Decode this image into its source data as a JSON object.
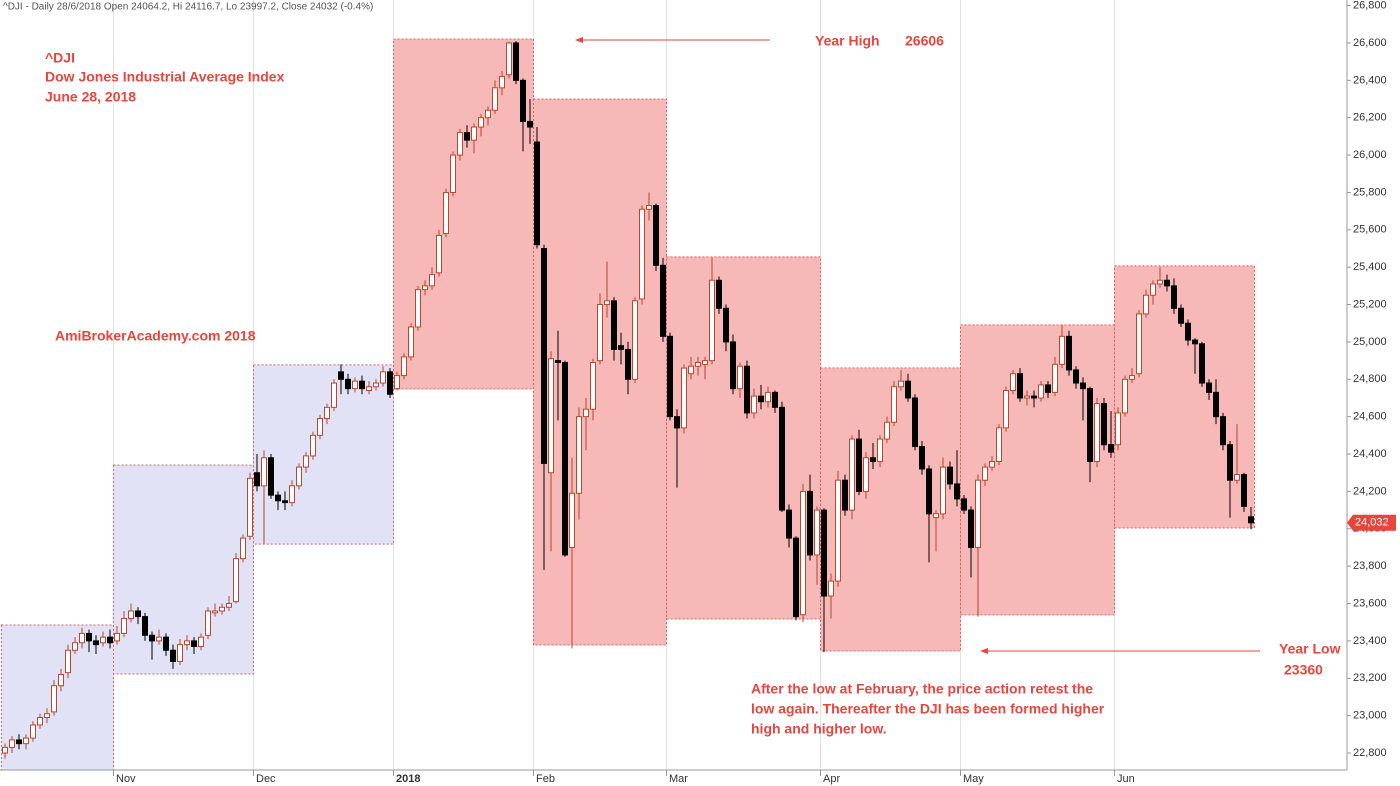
{
  "chart_data": {
    "type": "candlestick",
    "header": "^DJI - Daily 28/6/2018 Open 24064.2, Hi 24116.7, Lo 23997.2, Close 24032 (-0.4%)",
    "annotations": {
      "ticker": "^DJI",
      "name": "Dow Jones Industrial Average Index",
      "date": "June 28, 2018",
      "site": "AmiBrokerAcademy.com 2018",
      "year_high_label": "Year High",
      "year_high": 26606,
      "year_low_label": "Year Low",
      "year_low": 23360,
      "note": [
        "After the low at February, the price action retest the",
        "low again. Thereafter the DJI has been formed higher",
        "high and higher low."
      ]
    },
    "last_label": "24,032",
    "up_color": "#ffffff",
    "down_color": "#000000",
    "wick_color": "#b5482e",
    "label_color": "#e8463c",
    "ylim": [
      22709,
      26830
    ],
    "yticks": [
      {
        "value": 22800,
        "label": "22,800"
      },
      {
        "value": 23000,
        "label": "23,000"
      },
      {
        "value": 23200,
        "label": "23,200"
      },
      {
        "value": 23400,
        "label": "23,400"
      },
      {
        "value": 23600,
        "label": "23,600"
      },
      {
        "value": 23800,
        "label": "23,800"
      },
      {
        "value": 24000,
        "label": "24,000"
      },
      {
        "value": 24200,
        "label": "24,200"
      },
      {
        "value": 24400,
        "label": "24,400"
      },
      {
        "value": 24600,
        "label": "24,600"
      },
      {
        "value": 24800,
        "label": "24,800"
      },
      {
        "value": 25000,
        "label": "25,000"
      },
      {
        "value": 25200,
        "label": "25,200"
      },
      {
        "value": 25400,
        "label": "25,400"
      },
      {
        "value": 25600,
        "label": "25,600"
      },
      {
        "value": 25800,
        "label": "25,800"
      },
      {
        "value": 26000,
        "label": "26,000"
      },
      {
        "value": 26200,
        "label": "26,200"
      },
      {
        "value": 26400,
        "label": "26,400"
      },
      {
        "value": 26600,
        "label": "26,600"
      },
      {
        "value": 26800,
        "label": "26,800"
      }
    ],
    "categories": [
      null,
      null,
      null,
      null,
      null,
      null,
      null,
      null,
      null,
      null,
      null,
      null,
      null,
      null,
      null,
      null,
      "Nov",
      null,
      null,
      null,
      null,
      null,
      null,
      null,
      null,
      null,
      null,
      null,
      null,
      null,
      null,
      null,
      null,
      null,
      null,
      null,
      "Dec",
      null,
      null,
      null,
      null,
      null,
      null,
      null,
      null,
      null,
      null,
      null,
      null,
      null,
      null,
      null,
      null,
      null,
      null,
      null,
      "2018",
      null,
      null,
      null,
      null,
      null,
      null,
      null,
      null,
      null,
      null,
      null,
      null,
      null,
      null,
      null,
      null,
      null,
      null,
      null,
      "Feb",
      null,
      null,
      null,
      null,
      null,
      null,
      null,
      null,
      null,
      null,
      null,
      null,
      null,
      null,
      null,
      null,
      null,
      null,
      "Mar",
      null,
      null,
      null,
      null,
      null,
      null,
      null,
      null,
      null,
      null,
      null,
      null,
      null,
      null,
      null,
      null,
      null,
      null,
      null,
      null,
      null,
      "Apr",
      null,
      null,
      null,
      null,
      null,
      null,
      null,
      null,
      null,
      null,
      null,
      null,
      null,
      null,
      null,
      null,
      null,
      null,
      null,
      "May",
      null,
      null,
      null,
      null,
      null,
      null,
      null,
      null,
      null,
      null,
      null,
      null,
      null,
      null,
      null,
      null,
      null,
      null,
      null,
      null,
      null,
      "Jun",
      null,
      null,
      null,
      null,
      null,
      null,
      null,
      null,
      null,
      null,
      null,
      null,
      null,
      null,
      null,
      null,
      null,
      null,
      null
    ],
    "ranges": [
      {
        "high": 23485,
        "low": 22600,
        "color": "#e2e2f6"
      },
      {
        "high": 24341,
        "low": 23223,
        "color": "#e2e2f6"
      },
      {
        "high": 24877,
        "low": 23918,
        "color": "#e2e2f6"
      },
      {
        "high": 26621,
        "low": 24748,
        "color": "#f7b8b8"
      },
      {
        "high": 26300,
        "low": 23378,
        "color": "#f7b8b8"
      },
      {
        "high": 25455,
        "low": 23517,
        "color": "#f7b8b8"
      },
      {
        "high": 24861,
        "low": 23346,
        "color": "#f7b8b8"
      },
      {
        "high": 25091,
        "low": 23539,
        "color": "#f7b8b8"
      },
      {
        "high": 25407,
        "low": 24004,
        "color": "#f7b8b8"
      }
    ],
    "ohlc": [
      [
        22800,
        22850,
        22770,
        22830
      ],
      [
        22830,
        22890,
        22800,
        22870
      ],
      [
        22870,
        22900,
        22820,
        22850
      ],
      [
        22850,
        22900,
        22820,
        22880
      ],
      [
        22880,
        22970,
        22860,
        22950
      ],
      [
        22950,
        23010,
        22930,
        22990
      ],
      [
        22990,
        23040,
        22960,
        23010
      ],
      [
        23020,
        23190,
        23000,
        23160
      ],
      [
        23160,
        23250,
        23130,
        23220
      ],
      [
        23230,
        23380,
        23200,
        23350
      ],
      [
        23350,
        23420,
        23330,
        23390
      ],
      [
        23390,
        23470,
        23360,
        23440
      ],
      [
        23440,
        23460,
        23340,
        23400
      ],
      [
        23400,
        23430,
        23330,
        23380
      ],
      [
        23390,
        23450,
        23370,
        23420
      ],
      [
        23420,
        23460,
        23360,
        23390
      ],
      [
        23400,
        23480,
        23380,
        23440
      ],
      [
        23440,
        23560,
        23420,
        23520
      ],
      [
        23520,
        23600,
        23500,
        23560
      ],
      [
        23560,
        23580,
        23490,
        23530
      ],
      [
        23530,
        23550,
        23400,
        23430
      ],
      [
        23430,
        23450,
        23300,
        23400
      ],
      [
        23400,
        23460,
        23380,
        23420
      ],
      [
        23420,
        23440,
        23320,
        23350
      ],
      [
        23350,
        23380,
        23250,
        23290
      ],
      [
        23290,
        23410,
        23270,
        23380
      ],
      [
        23380,
        23430,
        23350,
        23400
      ],
      [
        23400,
        23420,
        23330,
        23370
      ],
      [
        23370,
        23440,
        23350,
        23420
      ],
      [
        23430,
        23580,
        23410,
        23560
      ],
      [
        23550,
        23600,
        23530,
        23560
      ],
      [
        23560,
        23600,
        23540,
        23580
      ],
      [
        23580,
        23640,
        23560,
        23600
      ],
      [
        23610,
        23870,
        23600,
        23840
      ],
      [
        23840,
        23970,
        23820,
        23950
      ],
      [
        23960,
        24300,
        23940,
        24270
      ],
      [
        24300,
        24400,
        24200,
        24230
      ],
      [
        24230,
        24420,
        23920,
        24380
      ],
      [
        24380,
        24400,
        24160,
        24180
      ],
      [
        24180,
        24200,
        24100,
        24150
      ],
      [
        24150,
        24200,
        24100,
        24140
      ],
      [
        24140,
        24260,
        24120,
        24230
      ],
      [
        24230,
        24350,
        24210,
        24330
      ],
      [
        24330,
        24410,
        24300,
        24390
      ],
      [
        24390,
        24520,
        24370,
        24500
      ],
      [
        24500,
        24610,
        24480,
        24590
      ],
      [
        24590,
        24670,
        24560,
        24650
      ],
      [
        24650,
        24800,
        24630,
        24780
      ],
      [
        24840,
        24880,
        24720,
        24800
      ],
      [
        24800,
        24830,
        24720,
        24750
      ],
      [
        24750,
        24810,
        24730,
        24790
      ],
      [
        24790,
        24820,
        24720,
        24750
      ],
      [
        24740,
        24790,
        24720,
        24760
      ],
      [
        24760,
        24800,
        24740,
        24780
      ],
      [
        24780,
        24870,
        24760,
        24840
      ],
      [
        24840,
        24860,
        24700,
        24720
      ],
      [
        24750,
        24840,
        24740,
        24820
      ],
      [
        24820,
        24940,
        24800,
        24920
      ],
      [
        24920,
        25100,
        24900,
        25080
      ],
      [
        25080,
        25300,
        25060,
        25280
      ],
      [
        25280,
        25330,
        25250,
        25300
      ],
      [
        25300,
        25400,
        25280,
        25360
      ],
      [
        25370,
        25600,
        25350,
        25570
      ],
      [
        25580,
        25820,
        25560,
        25800
      ],
      [
        25800,
        26020,
        25780,
        26000
      ],
      [
        26000,
        26140,
        25970,
        26120
      ],
      [
        26120,
        26160,
        26040,
        26080
      ],
      [
        26080,
        26170,
        26010,
        26150
      ],
      [
        26150,
        26220,
        26100,
        26200
      ],
      [
        26200,
        26260,
        26160,
        26240
      ],
      [
        26240,
        26400,
        26220,
        26360
      ],
      [
        26360,
        26450,
        26320,
        26420
      ],
      [
        26430,
        26606,
        26410,
        26600
      ],
      [
        26600,
        26610,
        26380,
        26400
      ],
      [
        26400,
        26410,
        26020,
        26180
      ],
      [
        26180,
        26300,
        26060,
        26150
      ],
      [
        26070,
        26150,
        25500,
        25520
      ],
      [
        25500,
        25520,
        23780,
        24350
      ],
      [
        24300,
        24950,
        23880,
        24910
      ],
      [
        24900,
        25060,
        24580,
        24890
      ],
      [
        24890,
        24900,
        23850,
        23860
      ],
      [
        23900,
        24380,
        23360,
        24190
      ],
      [
        24190,
        24650,
        24050,
        24600
      ],
      [
        24600,
        24700,
        24420,
        24640
      ],
      [
        24640,
        24910,
        24580,
        24890
      ],
      [
        24900,
        25260,
        24880,
        25200
      ],
      [
        25200,
        25430,
        25130,
        25220
      ],
      [
        25220,
        25240,
        24900,
        24960
      ],
      [
        24980,
        25050,
        24880,
        24960
      ],
      [
        24960,
        25000,
        24720,
        24800
      ],
      [
        24800,
        25240,
        24780,
        25220
      ],
      [
        25230,
        25730,
        25200,
        25710
      ],
      [
        25710,
        25800,
        25650,
        25730
      ],
      [
        25730,
        25740,
        25380,
        25410
      ],
      [
        25410,
        25450,
        25000,
        25030
      ],
      [
        25030,
        25050,
        24580,
        24600
      ],
      [
        24600,
        24640,
        24220,
        24540
      ],
      [
        24540,
        24880,
        24510,
        24860
      ],
      [
        24830,
        24920,
        24800,
        24870
      ],
      [
        24870,
        24920,
        24820,
        24890
      ],
      [
        24880,
        24920,
        24800,
        24900
      ],
      [
        24900,
        25450,
        24880,
        25330
      ],
      [
        25330,
        25350,
        25150,
        25180
      ],
      [
        25180,
        25200,
        24950,
        25000
      ],
      [
        25000,
        25040,
        24720,
        24750
      ],
      [
        24750,
        24890,
        24700,
        24870
      ],
      [
        24870,
        24900,
        24590,
        24620
      ],
      [
        24620,
        24750,
        24590,
        24710
      ],
      [
        24710,
        24770,
        24640,
        24680
      ],
      [
        24680,
        24760,
        24650,
        24730
      ],
      [
        24730,
        24740,
        24620,
        24650
      ],
      [
        24650,
        24680,
        24090,
        24100
      ],
      [
        24100,
        24130,
        23900,
        23950
      ],
      [
        23950,
        23960,
        23510,
        23530
      ],
      [
        23540,
        24240,
        23500,
        24200
      ],
      [
        24200,
        24290,
        23830,
        23860
      ],
      [
        23860,
        24120,
        23700,
        24100
      ],
      [
        24100,
        24110,
        23340,
        23640
      ],
      [
        23640,
        23760,
        23520,
        23720
      ],
      [
        23720,
        24310,
        23690,
        24260
      ],
      [
        24260,
        24290,
        24070,
        24100
      ],
      [
        24100,
        24500,
        24050,
        24480
      ],
      [
        24480,
        24530,
        24180,
        24200
      ],
      [
        24200,
        24410,
        24160,
        24380
      ],
      [
        24380,
        24460,
        24320,
        24360
      ],
      [
        24360,
        24500,
        24330,
        24480
      ],
      [
        24480,
        24600,
        24460,
        24570
      ],
      [
        24570,
        24790,
        24550,
        24760
      ],
      [
        24760,
        24850,
        24740,
        24790
      ],
      [
        24790,
        24830,
        24680,
        24700
      ],
      [
        24700,
        24720,
        24420,
        24440
      ],
      [
        24440,
        24470,
        24290,
        24320
      ],
      [
        24320,
        24340,
        23820,
        24080
      ],
      [
        24060,
        24100,
        23880,
        24080
      ],
      [
        24080,
        24380,
        24050,
        24330
      ],
      [
        24330,
        24360,
        24210,
        24240
      ],
      [
        24240,
        24420,
        24120,
        24160
      ],
      [
        24160,
        24180,
        24080,
        24100
      ],
      [
        24100,
        24120,
        23740,
        23900
      ],
      [
        23900,
        24290,
        23530,
        24260
      ],
      [
        24260,
        24350,
        24230,
        24330
      ],
      [
        24330,
        24390,
        24310,
        24360
      ],
      [
        24360,
        24560,
        24340,
        24540
      ],
      [
        24540,
        24760,
        24520,
        24740
      ],
      [
        24740,
        24850,
        24720,
        24830
      ],
      [
        24830,
        24860,
        24680,
        24700
      ],
      [
        24700,
        24740,
        24660,
        24710
      ],
      [
        24710,
        24740,
        24650,
        24700
      ],
      [
        24700,
        24790,
        24680,
        24770
      ],
      [
        24770,
        24790,
        24700,
        24730
      ],
      [
        24730,
        24920,
        24710,
        24880
      ],
      [
        24880,
        25090,
        24860,
        25030
      ],
      [
        25030,
        25060,
        24820,
        24850
      ],
      [
        24850,
        24870,
        24750,
        24780
      ],
      [
        24780,
        24810,
        24580,
        24750
      ],
      [
        24750,
        24760,
        24250,
        24360
      ],
      [
        24360,
        24700,
        24330,
        24670
      ],
      [
        24670,
        24700,
        24420,
        24450
      ],
      [
        24450,
        24630,
        24380,
        24410
      ],
      [
        24450,
        24650,
        24420,
        24620
      ],
      [
        24620,
        24820,
        24600,
        24800
      ],
      [
        24800,
        24860,
        24780,
        24820
      ],
      [
        24830,
        25170,
        24810,
        25150
      ],
      [
        25150,
        25280,
        25130,
        25250
      ],
      [
        25250,
        25330,
        25200,
        25310
      ],
      [
        25310,
        25400,
        25290,
        25330
      ],
      [
        25330,
        25360,
        25270,
        25300
      ],
      [
        25300,
        25340,
        25150,
        25180
      ],
      [
        25180,
        25200,
        25080,
        25100
      ],
      [
        25100,
        25120,
        24980,
        25010
      ],
      [
        25010,
        25020,
        24830,
        24990
      ],
      [
        24990,
        25000,
        24760,
        24780
      ],
      [
        24780,
        24800,
        24690,
        24730
      ],
      [
        24730,
        24800,
        24560,
        24600
      ],
      [
        24600,
        24620,
        24420,
        24450
      ],
      [
        24450,
        24470,
        24060,
        24260
      ],
      [
        24260,
        24560,
        24240,
        24290
      ],
      [
        24290,
        24300,
        24090,
        24120
      ],
      [
        24064.2,
        24116.7,
        23997.2,
        24032
      ]
    ]
  }
}
